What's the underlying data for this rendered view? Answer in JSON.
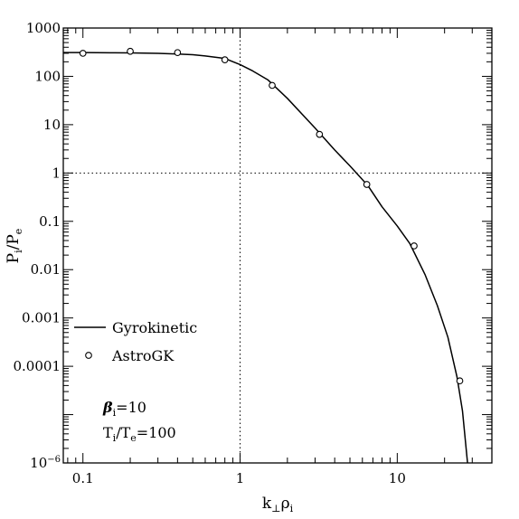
{
  "chart_data": {
    "type": "line",
    "xlabel": {
      "main": "k",
      "sub1": "⊥",
      "mid": "ρ",
      "sub2": "i"
    },
    "ylabel": {
      "main1": "P",
      "sub1": "i",
      "slash": "/P",
      "sub2": "e"
    },
    "x_scale": "log",
    "y_scale": "log",
    "xlim": [
      0.075,
      40
    ],
    "ylim": [
      1e-06,
      1000
    ],
    "x_ticks": [
      {
        "value": 0.1,
        "label": "0.1"
      },
      {
        "value": 1,
        "label": "1"
      },
      {
        "value": 10,
        "label": "10"
      }
    ],
    "y_ticks": [
      {
        "value": 1000,
        "label": "1000"
      },
      {
        "value": 100,
        "label": "100"
      },
      {
        "value": 10,
        "label": "10"
      },
      {
        "value": 1,
        "label": "1"
      },
      {
        "value": 0.1,
        "label": "0.1"
      },
      {
        "value": 0.01,
        "label": "0.01"
      },
      {
        "value": 0.001,
        "label": "0.001"
      },
      {
        "value": 0.0001,
        "label": "0.0001"
      },
      {
        "value": 1e-06,
        "label": "10",
        "exp": "−6"
      }
    ],
    "reference_lines": [
      {
        "axis": "x",
        "value": 1,
        "style": "dotted"
      },
      {
        "axis": "y",
        "value": 1,
        "style": "dotted"
      }
    ],
    "series": [
      {
        "name": "Gyrokinetic",
        "kind": "line",
        "x": [
          0.075,
          0.1,
          0.15,
          0.2,
          0.3,
          0.4,
          0.5,
          0.6,
          0.8,
          1.0,
          1.2,
          1.5,
          2.0,
          3.0,
          4.0,
          5.0,
          6.5,
          8.0,
          10,
          12,
          15,
          18,
          21,
          24,
          26,
          28
        ],
        "y": [
          310,
          310,
          308,
          305,
          300,
          290,
          280,
          265,
          235,
          175,
          130,
          85,
          35,
          8.5,
          3.0,
          1.4,
          0.55,
          0.2,
          0.08,
          0.035,
          0.008,
          0.0018,
          0.0004,
          6e-05,
          1.2e-05,
          1e-06
        ]
      },
      {
        "name": "AstroGK",
        "kind": "scatter",
        "marker": "open-circle",
        "x": [
          0.1,
          0.2,
          0.4,
          0.8,
          1.6,
          3.2,
          6.4,
          12.8,
          25
        ],
        "y": [
          300,
          330,
          310,
          220,
          65,
          6.3,
          0.58,
          0.031,
          5e-05
        ]
      }
    ],
    "legend": {
      "placement": "left-middle",
      "entries": [
        {
          "marker": "line",
          "label": "Gyrokinetic"
        },
        {
          "marker": "open-circle",
          "label": "AstroGK"
        }
      ]
    },
    "annotations": {
      "beta": {
        "symbol": "β",
        "sub": "i",
        "rest": "=10"
      },
      "temp": {
        "t1": "T",
        "sub1": "i",
        "mid": "/T",
        "sub2": "e",
        "rest": "=100"
      }
    },
    "grid": false
  }
}
